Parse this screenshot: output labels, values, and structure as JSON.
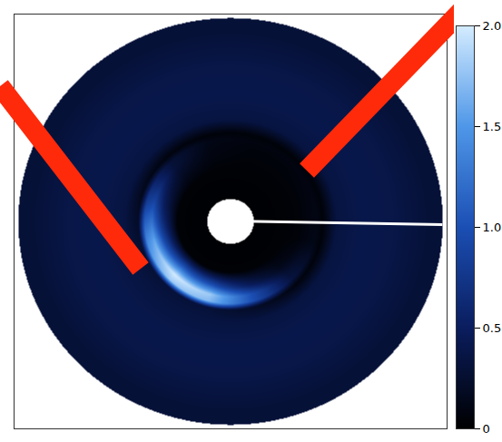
{
  "chart_data": {
    "type": "polar_heatmap",
    "tick_labels": false,
    "xlim": [
      -1.02,
      1.02
    ],
    "ylim": [
      -1.02,
      1.02
    ],
    "radius_edges": [
      0.11,
      0.2,
      0.3,
      0.35,
      0.39,
      0.42,
      0.45,
      0.55,
      0.7,
      0.85,
      1.0
    ],
    "angle_edges": [
      0,
      30,
      60,
      90,
      120,
      150,
      180,
      210,
      240,
      270,
      300,
      330,
      360
    ],
    "cells": [
      [
        0.02,
        0.02,
        0.02,
        0.02,
        0.02,
        0.02,
        0.02,
        0.02,
        0.02,
        0.02,
        0.02,
        0.02
      ],
      [
        0.03,
        0.03,
        0.03,
        0.03,
        0.03,
        0.03,
        0.03,
        0.03,
        0.03,
        0.03,
        0.03,
        0.03
      ],
      [
        0.05,
        0.05,
        0.05,
        0.08,
        0.2,
        0.5,
        0.9,
        1.2,
        1.0,
        0.5,
        0.15,
        0.05
      ],
      [
        0.08,
        0.06,
        0.06,
        0.1,
        0.3,
        0.9,
        1.6,
        2.0,
        1.8,
        1.0,
        0.3,
        0.1
      ],
      [
        0.1,
        0.08,
        0.08,
        0.12,
        0.3,
        0.8,
        1.4,
        1.8,
        1.7,
        1.0,
        0.35,
        0.12
      ],
      [
        0.05,
        0.05,
        0.05,
        0.05,
        0.08,
        0.15,
        0.25,
        0.3,
        0.3,
        0.2,
        0.08,
        0.05
      ],
      [
        0.35,
        0.35,
        0.35,
        0.35,
        0.35,
        0.35,
        0.35,
        0.35,
        0.35,
        0.35,
        0.35,
        0.35
      ],
      [
        0.4,
        0.4,
        0.4,
        0.4,
        0.4,
        0.4,
        0.4,
        0.4,
        0.4,
        0.4,
        0.4,
        0.4
      ],
      [
        0.38,
        0.38,
        0.38,
        0.38,
        0.38,
        0.38,
        0.38,
        0.38,
        0.38,
        0.38,
        0.38,
        0.38
      ],
      [
        0.3,
        0.3,
        0.3,
        0.3,
        0.3,
        0.3,
        0.3,
        0.3,
        0.3,
        0.3,
        0.3,
        0.3
      ]
    ],
    "colorbar": {
      "range": [
        0,
        2
      ],
      "ticks": [
        0,
        0.5,
        {
          "value": 1,
          "label": "1.0"
        },
        1.5,
        {
          "value": 2,
          "label": "2.0"
        }
      ]
    }
  }
}
